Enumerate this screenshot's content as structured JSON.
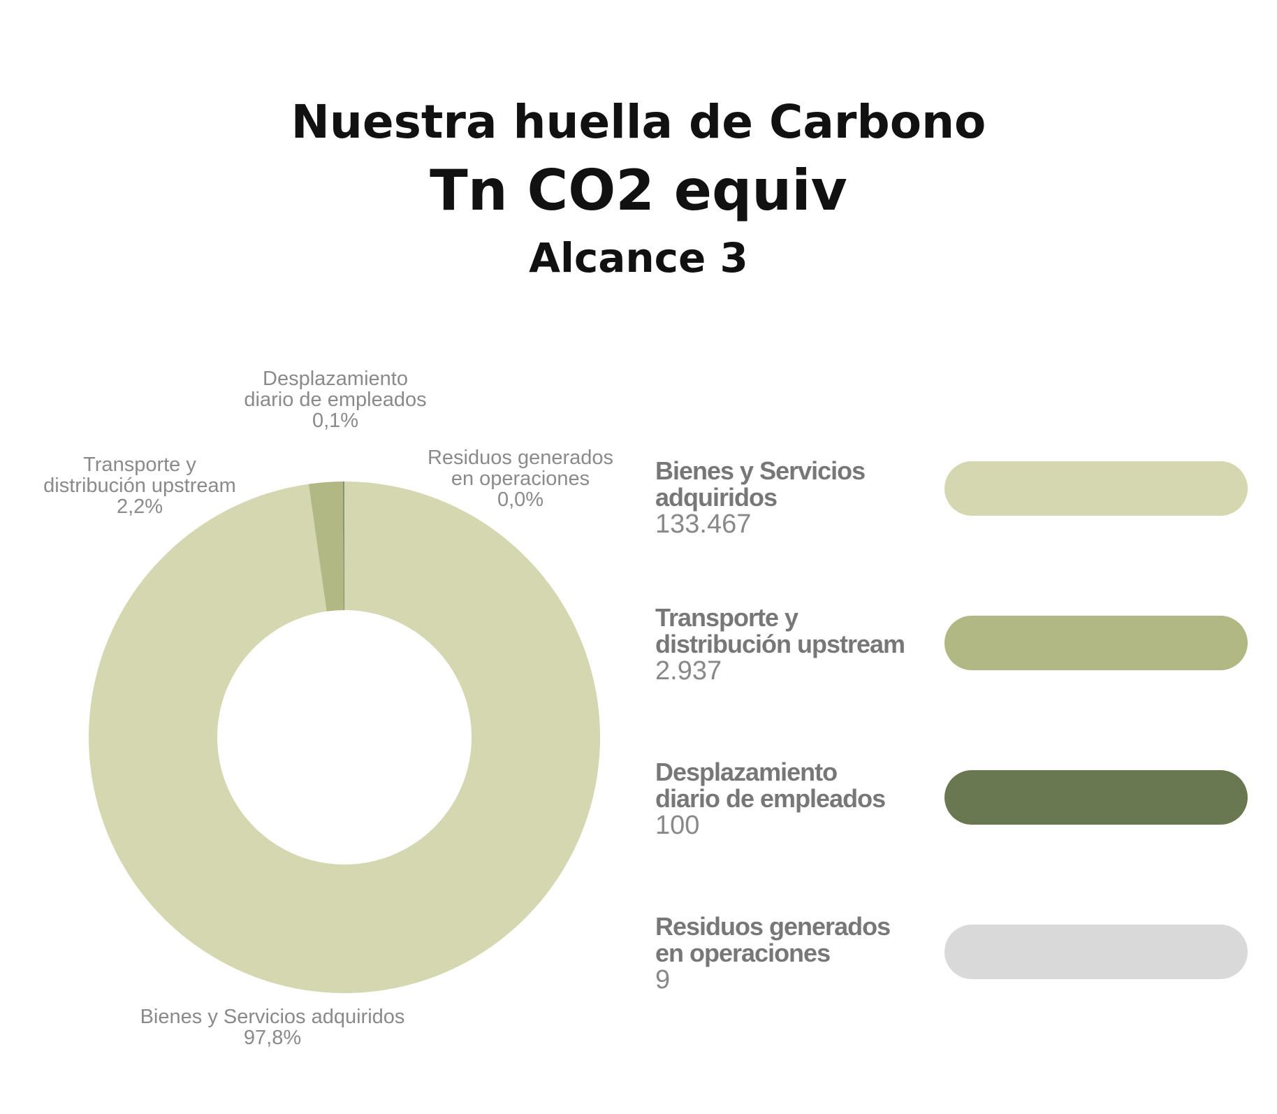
{
  "header": {
    "title": "Nuestra huella de Carbono",
    "subtitle": "Tn CO2 equiv",
    "scope": "Alcance 3"
  },
  "chart_data": {
    "type": "pie",
    "donut": true,
    "categories": [
      "Bienes y Servicios adquiridos",
      "Transporte y distribución upstream",
      "Desplazamiento diario de empleados",
      "Residuos generados en operaciones"
    ],
    "values": [
      133467,
      2937,
      100,
      9
    ],
    "percent_labels": [
      "97,8%",
      "2,2%",
      "0,1%",
      "0,0%"
    ],
    "colors": [
      "#d5d7b0",
      "#b1b884",
      "#6a7852",
      "#d9d9d9"
    ]
  },
  "slice_labels": [
    {
      "lines": [
        "Bienes y Servicios adquiridos"
      ],
      "pct": "97,8%"
    },
    {
      "lines": [
        "Transporte y",
        "distribución upstream"
      ],
      "pct": "2,2%"
    },
    {
      "lines": [
        "Desplazamiento",
        "diario de empleados"
      ],
      "pct": "0,1%"
    },
    {
      "lines": [
        "Residuos generados",
        "en operaciones"
      ],
      "pct": "0,0%"
    }
  ],
  "legend": [
    {
      "name_lines": [
        "Bienes y Servicios",
        "adquiridos"
      ],
      "value": "133.467",
      "color": "#d5d7b0"
    },
    {
      "name_lines": [
        "Transporte y",
        "distribución upstream"
      ],
      "value": "2.937",
      "color": "#b1b884"
    },
    {
      "name_lines": [
        "Desplazamiento",
        "diario de empleados"
      ],
      "value": "100",
      "color": "#6a7852"
    },
    {
      "name_lines": [
        "Residuos generados",
        "en operaciones"
      ],
      "value": "9",
      "color": "#d9d9d9"
    }
  ]
}
